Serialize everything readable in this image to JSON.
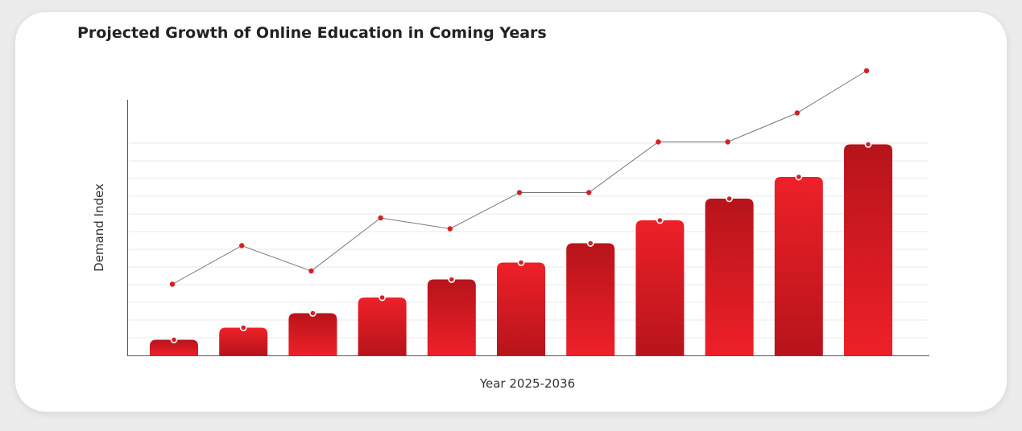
{
  "chart_data": {
    "type": "bar",
    "title": "Projected Growth of Online Education in Coming Years",
    "xlabel": "Year 2025-2036",
    "ylabel": "Demand Index",
    "ylim": [
      0,
      100
    ],
    "grid": true,
    "series": [
      {
        "type": "bar",
        "values": [
          6.5,
          11.5,
          17.5,
          24,
          31.5,
          38.5,
          46.5,
          56,
          65,
          74,
          87.5
        ]
      },
      {
        "type": "line",
        "values": [
          29.5,
          45.5,
          35,
          57,
          52.5,
          67.5,
          67.5,
          88.5,
          88.5,
          100.5,
          118
        ]
      }
    ],
    "colors": {
      "bar_light": "#ee2028",
      "bar_dark": "#b7141b",
      "line": "#777777",
      "marker": "#d51f26"
    }
  }
}
